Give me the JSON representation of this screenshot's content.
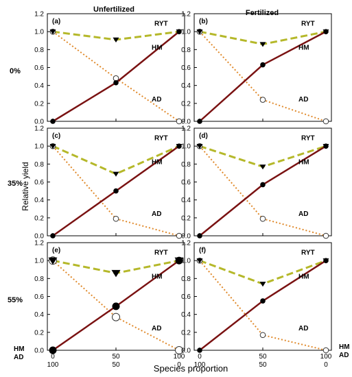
{
  "figure": {
    "columns": [
      "Unfertilized",
      "Fertilized"
    ],
    "rows": [
      "0%",
      "35%",
      "55%"
    ],
    "ylabel": "Relative yield",
    "xlabel": "Species proportion",
    "x_row_labels": [
      "HM",
      "AD"
    ],
    "y_ticks": [
      "0.0",
      "0.2",
      "0.4",
      "0.6",
      "0.8",
      "1.0",
      "1.2"
    ],
    "x_tick_top": [
      "0",
      "50",
      "100"
    ],
    "x_tick_bottom": [
      "100",
      "50",
      "0"
    ],
    "series_labels": {
      "RYT": "RYT",
      "HM": "HM",
      "AD": "AD"
    }
  },
  "colors": {
    "RYT": "#b5b82a",
    "HM": "#7a1212",
    "AD": "#e0892a",
    "frame": "#000000"
  },
  "chart_data": [
    {
      "type": "line",
      "panel": "(a)",
      "fertilization": "Unfertilized",
      "row": "0%",
      "x": [
        0,
        50,
        100
      ],
      "ylim": [
        0,
        1.2
      ],
      "series": [
        {
          "name": "RYT",
          "values": [
            1.0,
            0.91,
            1.0
          ]
        },
        {
          "name": "HM",
          "values": [
            0.0,
            0.43,
            1.0
          ]
        },
        {
          "name": "AD",
          "values": [
            1.0,
            0.48,
            0.0
          ]
        }
      ]
    },
    {
      "type": "line",
      "panel": "(b)",
      "fertilization": "Fertilized",
      "row": "0%",
      "x": [
        0,
        50,
        100
      ],
      "ylim": [
        0,
        1.2
      ],
      "series": [
        {
          "name": "RYT",
          "values": [
            1.0,
            0.86,
            1.0
          ]
        },
        {
          "name": "HM",
          "values": [
            0.0,
            0.63,
            1.0
          ]
        },
        {
          "name": "AD",
          "values": [
            1.0,
            0.24,
            0.0
          ]
        }
      ]
    },
    {
      "type": "line",
      "panel": "(c)",
      "fertilization": "Unfertilized",
      "row": "35%",
      "x": [
        0,
        50,
        100
      ],
      "ylim": [
        0,
        1.2
      ],
      "series": [
        {
          "name": "RYT",
          "values": [
            1.0,
            0.69,
            1.0
          ]
        },
        {
          "name": "HM",
          "values": [
            0.0,
            0.5,
            1.0
          ]
        },
        {
          "name": "AD",
          "values": [
            1.0,
            0.19,
            0.0
          ]
        }
      ]
    },
    {
      "type": "line",
      "panel": "(d)",
      "fertilization": "Fertilized",
      "row": "35%",
      "x": [
        0,
        50,
        100
      ],
      "ylim": [
        0,
        1.2
      ],
      "series": [
        {
          "name": "RYT",
          "values": [
            1.0,
            0.77,
            1.0
          ]
        },
        {
          "name": "HM",
          "values": [
            0.0,
            0.57,
            1.0
          ]
        },
        {
          "name": "AD",
          "values": [
            1.0,
            0.19,
            0.0
          ]
        }
      ]
    },
    {
      "type": "line",
      "panel": "(e)",
      "fertilization": "Unfertilized",
      "row": "55%",
      "x": [
        0,
        50,
        100
      ],
      "ylim": [
        0,
        1.2
      ],
      "series": [
        {
          "name": "RYT",
          "values": [
            1.0,
            0.86,
            1.0
          ]
        },
        {
          "name": "HM",
          "values": [
            0.0,
            0.49,
            1.0
          ]
        },
        {
          "name": "AD",
          "values": [
            1.0,
            0.37,
            0.0
          ]
        }
      ]
    },
    {
      "type": "line",
      "panel": "(f)",
      "fertilization": "Fertilized",
      "row": "55%",
      "x": [
        0,
        50,
        100
      ],
      "ylim": [
        0,
        1.2
      ],
      "series": [
        {
          "name": "RYT",
          "values": [
            1.0,
            0.74,
            1.0
          ]
        },
        {
          "name": "HM",
          "values": [
            0.0,
            0.55,
            1.0
          ]
        },
        {
          "name": "AD",
          "values": [
            1.0,
            0.17,
            0.0
          ]
        }
      ]
    }
  ]
}
